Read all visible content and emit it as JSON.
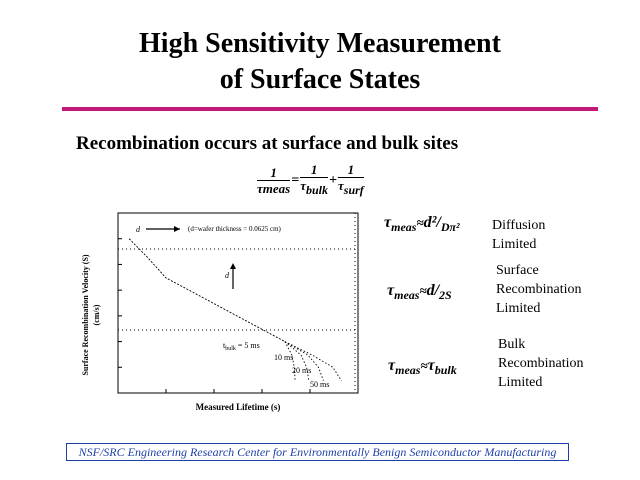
{
  "slide": {
    "title_line1": "High Sensitivity Measurement",
    "title_line2": "of Surface States",
    "subtitle": "Recombination occurs at surface and bulk sites",
    "footer": "NSF/SRC Engineering Research Center for Environmentally Benign Semiconductor Manufacturing",
    "accent_color": "#c2187a",
    "footer_color": "#1f3fa8"
  },
  "equation_main": {
    "numerator": "1",
    "tau": "τ",
    "meas": "meas",
    "bulk": "bulk",
    "surf": "surf",
    "equals": "=",
    "plus": "+"
  },
  "regimes": [
    {
      "expr_tau": "τ",
      "expr_sub": "meas",
      "approx": "≈",
      "expr_rhs": "d²",
      "expr_den": "Dπ²",
      "label_lines": [
        "Diffusion",
        "Limited"
      ]
    },
    {
      "expr_tau": "τ",
      "expr_sub": "meas",
      "approx": "≈",
      "expr_rhs": "d",
      "expr_den": "2S",
      "label_lines": [
        "Surface",
        "Recombination",
        "Limited"
      ]
    },
    {
      "expr_tau": "τ",
      "expr_sub": "meas",
      "approx": "≈",
      "expr_rhs": "τ",
      "expr_den": "bulk",
      "label_lines": [
        "Bulk",
        "Recombination",
        "Limited"
      ]
    }
  ],
  "figure": {
    "ylabel_line1": "Surface Recombination Velocity (S)",
    "ylabel_line2": "(cm/s)",
    "xlabel": "Measured Lifetime (s)",
    "annotation_wafer": "(d=wafer thickness = 0.0625 cm)",
    "annotation_d": "d",
    "annotation_d2": "d",
    "tbulk_label": "t",
    "tbulk_sub": "bulk",
    "tbulk_value": "= 5 ms",
    "curve_labels": [
      "10 ms",
      "20 ms",
      "50 ms"
    ]
  },
  "chart_data": {
    "type": "line",
    "xlabel": "Measured Lifetime (s)",
    "ylabel": "Surface Recombination Velocity (S) (cm/s)",
    "x_scale": "log",
    "y_scale": "log",
    "series": [
      {
        "x": [
          1.7e-06,
          4e-06,
          1e-05,
          3e-05,
          0.0001,
          0.0003,
          0.001,
          0.003
        ],
        "y": [
          100000,
          20000,
          3000,
          1000,
          300,
          100,
          30,
          10
        ]
      },
      {
        "name": "5 ms",
        "x": [
          0.003,
          0.0042,
          0.0047,
          0.0049
        ],
        "y": [
          10,
          3,
          1,
          0.3
        ]
      },
      {
        "name": "10 ms",
        "x": [
          0.003,
          0.0065,
          0.0085,
          0.0095
        ],
        "y": [
          10,
          3,
          1,
          0.3
        ]
      },
      {
        "name": "20 ms",
        "x": [
          0.003,
          0.009,
          0.015,
          0.019
        ],
        "y": [
          10,
          3,
          1,
          0.3
        ]
      },
      {
        "name": "50 ms",
        "x": [
          0.003,
          0.011,
          0.03,
          0.045
        ],
        "y": [
          10,
          3,
          1,
          0.3
        ]
      }
    ]
  }
}
